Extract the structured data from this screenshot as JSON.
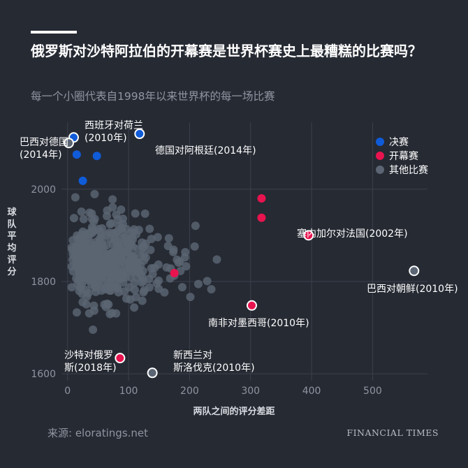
{
  "header": {
    "title": "俄罗斯对沙特阿拉伯的开幕赛是世界杯赛史上最糟糕的比赛吗？",
    "subtitle": "每一个小圈代表自1998年以来世界杯的每一场比赛"
  },
  "footer": {
    "source": "来源: eloratings.net",
    "brand": "FINANCIAL TIMES"
  },
  "colors": {
    "background": "#262a33",
    "final": "#0f5bd8",
    "opener": "#e8144f",
    "other": "#5b6573",
    "text": "#ffffff",
    "muted": "#8f95a1"
  },
  "legend": [
    {
      "label": "决赛",
      "color": "#0f5bd8"
    },
    {
      "label": "开幕赛",
      "color": "#e8144f"
    },
    {
      "label": "其他比赛",
      "color": "#5b6573"
    }
  ],
  "chart_data": {
    "type": "scatter",
    "xlabel": "两队之间的评分差距",
    "ylabel": "球队平均评分",
    "xlim": [
      -10,
      590
    ],
    "ylim": [
      1585,
      2145
    ],
    "xticks": [
      0,
      100,
      200,
      300,
      400,
      500
    ],
    "yticks": [
      1600,
      1800,
      2000
    ],
    "grid": true,
    "legend_position": "top-right",
    "finals": [
      {
        "x": 10,
        "y": 2112
      },
      {
        "x": 118,
        "y": 2120
      },
      {
        "x": 15,
        "y": 2075
      },
      {
        "x": 48,
        "y": 2072
      },
      {
        "x": 25,
        "y": 2018
      }
    ],
    "openers": [
      {
        "x": 318,
        "y": 1980
      },
      {
        "x": 318,
        "y": 1938
      },
      {
        "x": 175,
        "y": 1818
      },
      {
        "x": 395,
        "y": 1900
      },
      {
        "x": 302,
        "y": 1748
      },
      {
        "x": 86,
        "y": 1634
      }
    ],
    "highlighted": [
      {
        "x": 2,
        "y": 2100
      },
      {
        "x": 568,
        "y": 1823
      },
      {
        "x": 139,
        "y": 1602
      }
    ],
    "annotations": [
      {
        "label": "巴西对德国\n(2014年)"
      },
      {
        "label": "西班牙对荷兰\n(2010年)"
      },
      {
        "label": "德国对阿根廷(2014年)"
      },
      {
        "label": "塞内加尔对法国(2002年)"
      },
      {
        "label": "巴西对朝鲜(2010年)"
      },
      {
        "label": "南非对墨西哥(2010年)"
      },
      {
        "label": "沙特对俄罗\n斯(2018年)"
      },
      {
        "label": "新西兰对\n斯洛伐克(2010年)"
      }
    ]
  }
}
